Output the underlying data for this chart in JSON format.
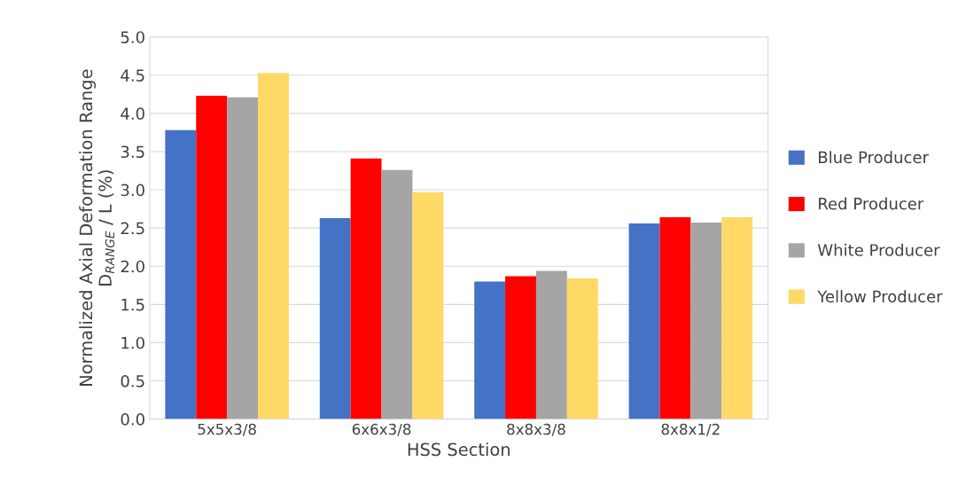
{
  "chart_data": {
    "type": "bar",
    "xlabel": "HSS Section",
    "ylabel": "Normalized Axial Deformation Range\nD$_{RANGE}$ / L (%)",
    "categories": [
      "5x5x3/8",
      "6x6x3/8",
      "8x8x3/8",
      "8x8x1/2"
    ],
    "series": [
      {
        "name": "Blue Producer",
        "color": "#4472c4",
        "values": [
          3.78,
          2.63,
          1.8,
          2.56
        ]
      },
      {
        "name": "Red Producer",
        "color": "#ff0000",
        "values": [
          4.23,
          3.41,
          1.87,
          2.64
        ]
      },
      {
        "name": "White Producer",
        "color": "#a5a5a5",
        "values": [
          4.21,
          3.26,
          1.94,
          2.57
        ]
      },
      {
        "name": "Yellow Producer",
        "color": "#ffd966",
        "values": [
          4.53,
          2.97,
          1.84,
          2.64
        ]
      }
    ],
    "ylim": [
      0,
      5
    ],
    "yticks": [
      {
        "value": 0,
        "label": "0.0"
      },
      {
        "value": 0.5,
        "label": "0.5"
      },
      {
        "value": 1,
        "label": "1.0"
      },
      {
        "value": 1.5,
        "label": "1.5"
      },
      {
        "value": 2,
        "label": "2.0"
      },
      {
        "value": 2.5,
        "label": "2.5"
      },
      {
        "value": 3,
        "label": "3.0"
      },
      {
        "value": 3.5,
        "label": "3.5"
      },
      {
        "value": 4,
        "label": "4.0"
      },
      {
        "value": 4.5,
        "label": "4.5"
      },
      {
        "value": 5,
        "label": "5.0"
      }
    ],
    "grid": "y",
    "legend": "right"
  }
}
